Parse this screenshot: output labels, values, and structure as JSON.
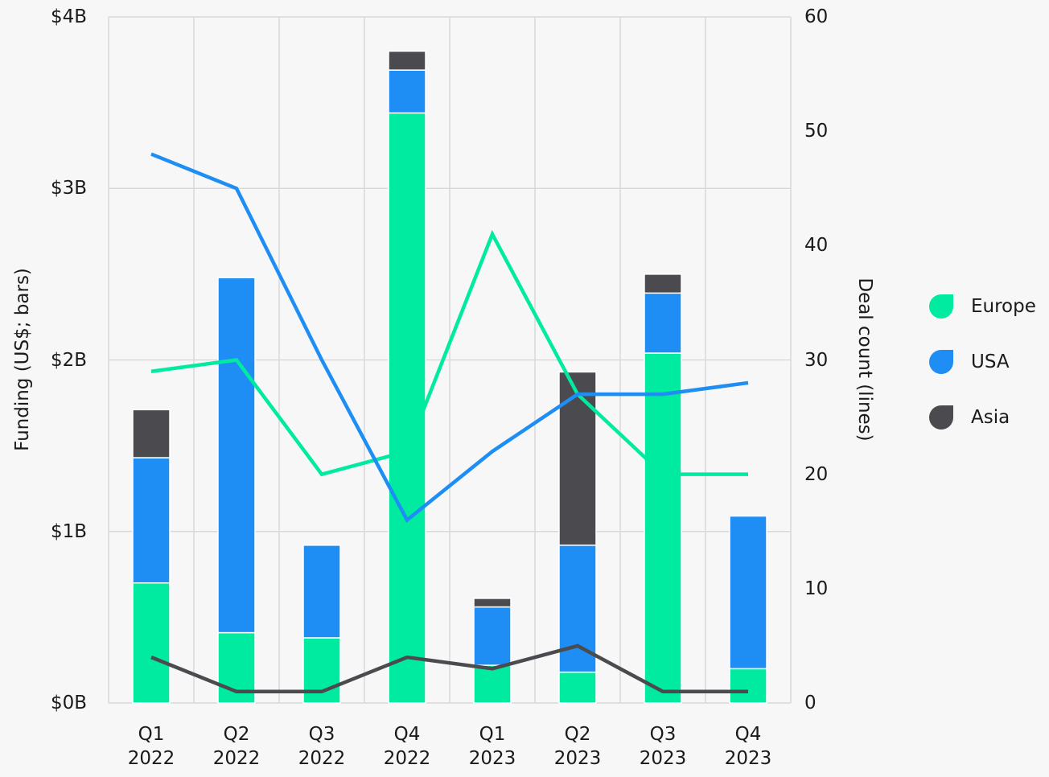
{
  "chart_data": {
    "type": "bar",
    "stacked": true,
    "y_label": "Funding (US$; bars)",
    "y2_label": "Deal count (lines)",
    "categories": [
      "Q1 2022",
      "Q2 2022",
      "Q3 2022",
      "Q4 2022",
      "Q1 2023",
      "Q2 2023",
      "Q3 2023",
      "Q4 2023"
    ],
    "series": [
      {
        "name": "Europe",
        "color": "#00eba0",
        "values": [
          0.7,
          0.41,
          0.38,
          3.44,
          0.22,
          0.18,
          2.04,
          0.2
        ],
        "y2_values": [
          29,
          30,
          20,
          22,
          41,
          27,
          20,
          20
        ]
      },
      {
        "name": "USA",
        "color": "#1e8ef5",
        "values": [
          0.73,
          2.07,
          0.54,
          0.25,
          0.34,
          0.74,
          0.35,
          0.89
        ],
        "y2_values": [
          48,
          45,
          30,
          16,
          22,
          27,
          27,
          28
        ]
      },
      {
        "name": "Asia",
        "color": "#4a4a4f",
        "values": [
          0.28,
          0,
          0,
          0.11,
          0.05,
          1.01,
          0.11,
          0
        ],
        "y2_values": [
          4,
          1,
          1,
          4,
          3,
          5,
          1,
          1
        ]
      }
    ],
    "ylim": [
      0,
      4
    ],
    "yticks": [
      {
        "value": 0,
        "label": "$0B"
      },
      {
        "value": 1,
        "label": "$1B"
      },
      {
        "value": 2,
        "label": "$2B"
      },
      {
        "value": 3,
        "label": "$3B"
      },
      {
        "value": 4,
        "label": "$4B"
      }
    ],
    "y2lim": [
      0,
      60
    ],
    "y2ticks": [
      0,
      10,
      20,
      30,
      40,
      50,
      60
    ],
    "grid": true,
    "legend": "right"
  }
}
